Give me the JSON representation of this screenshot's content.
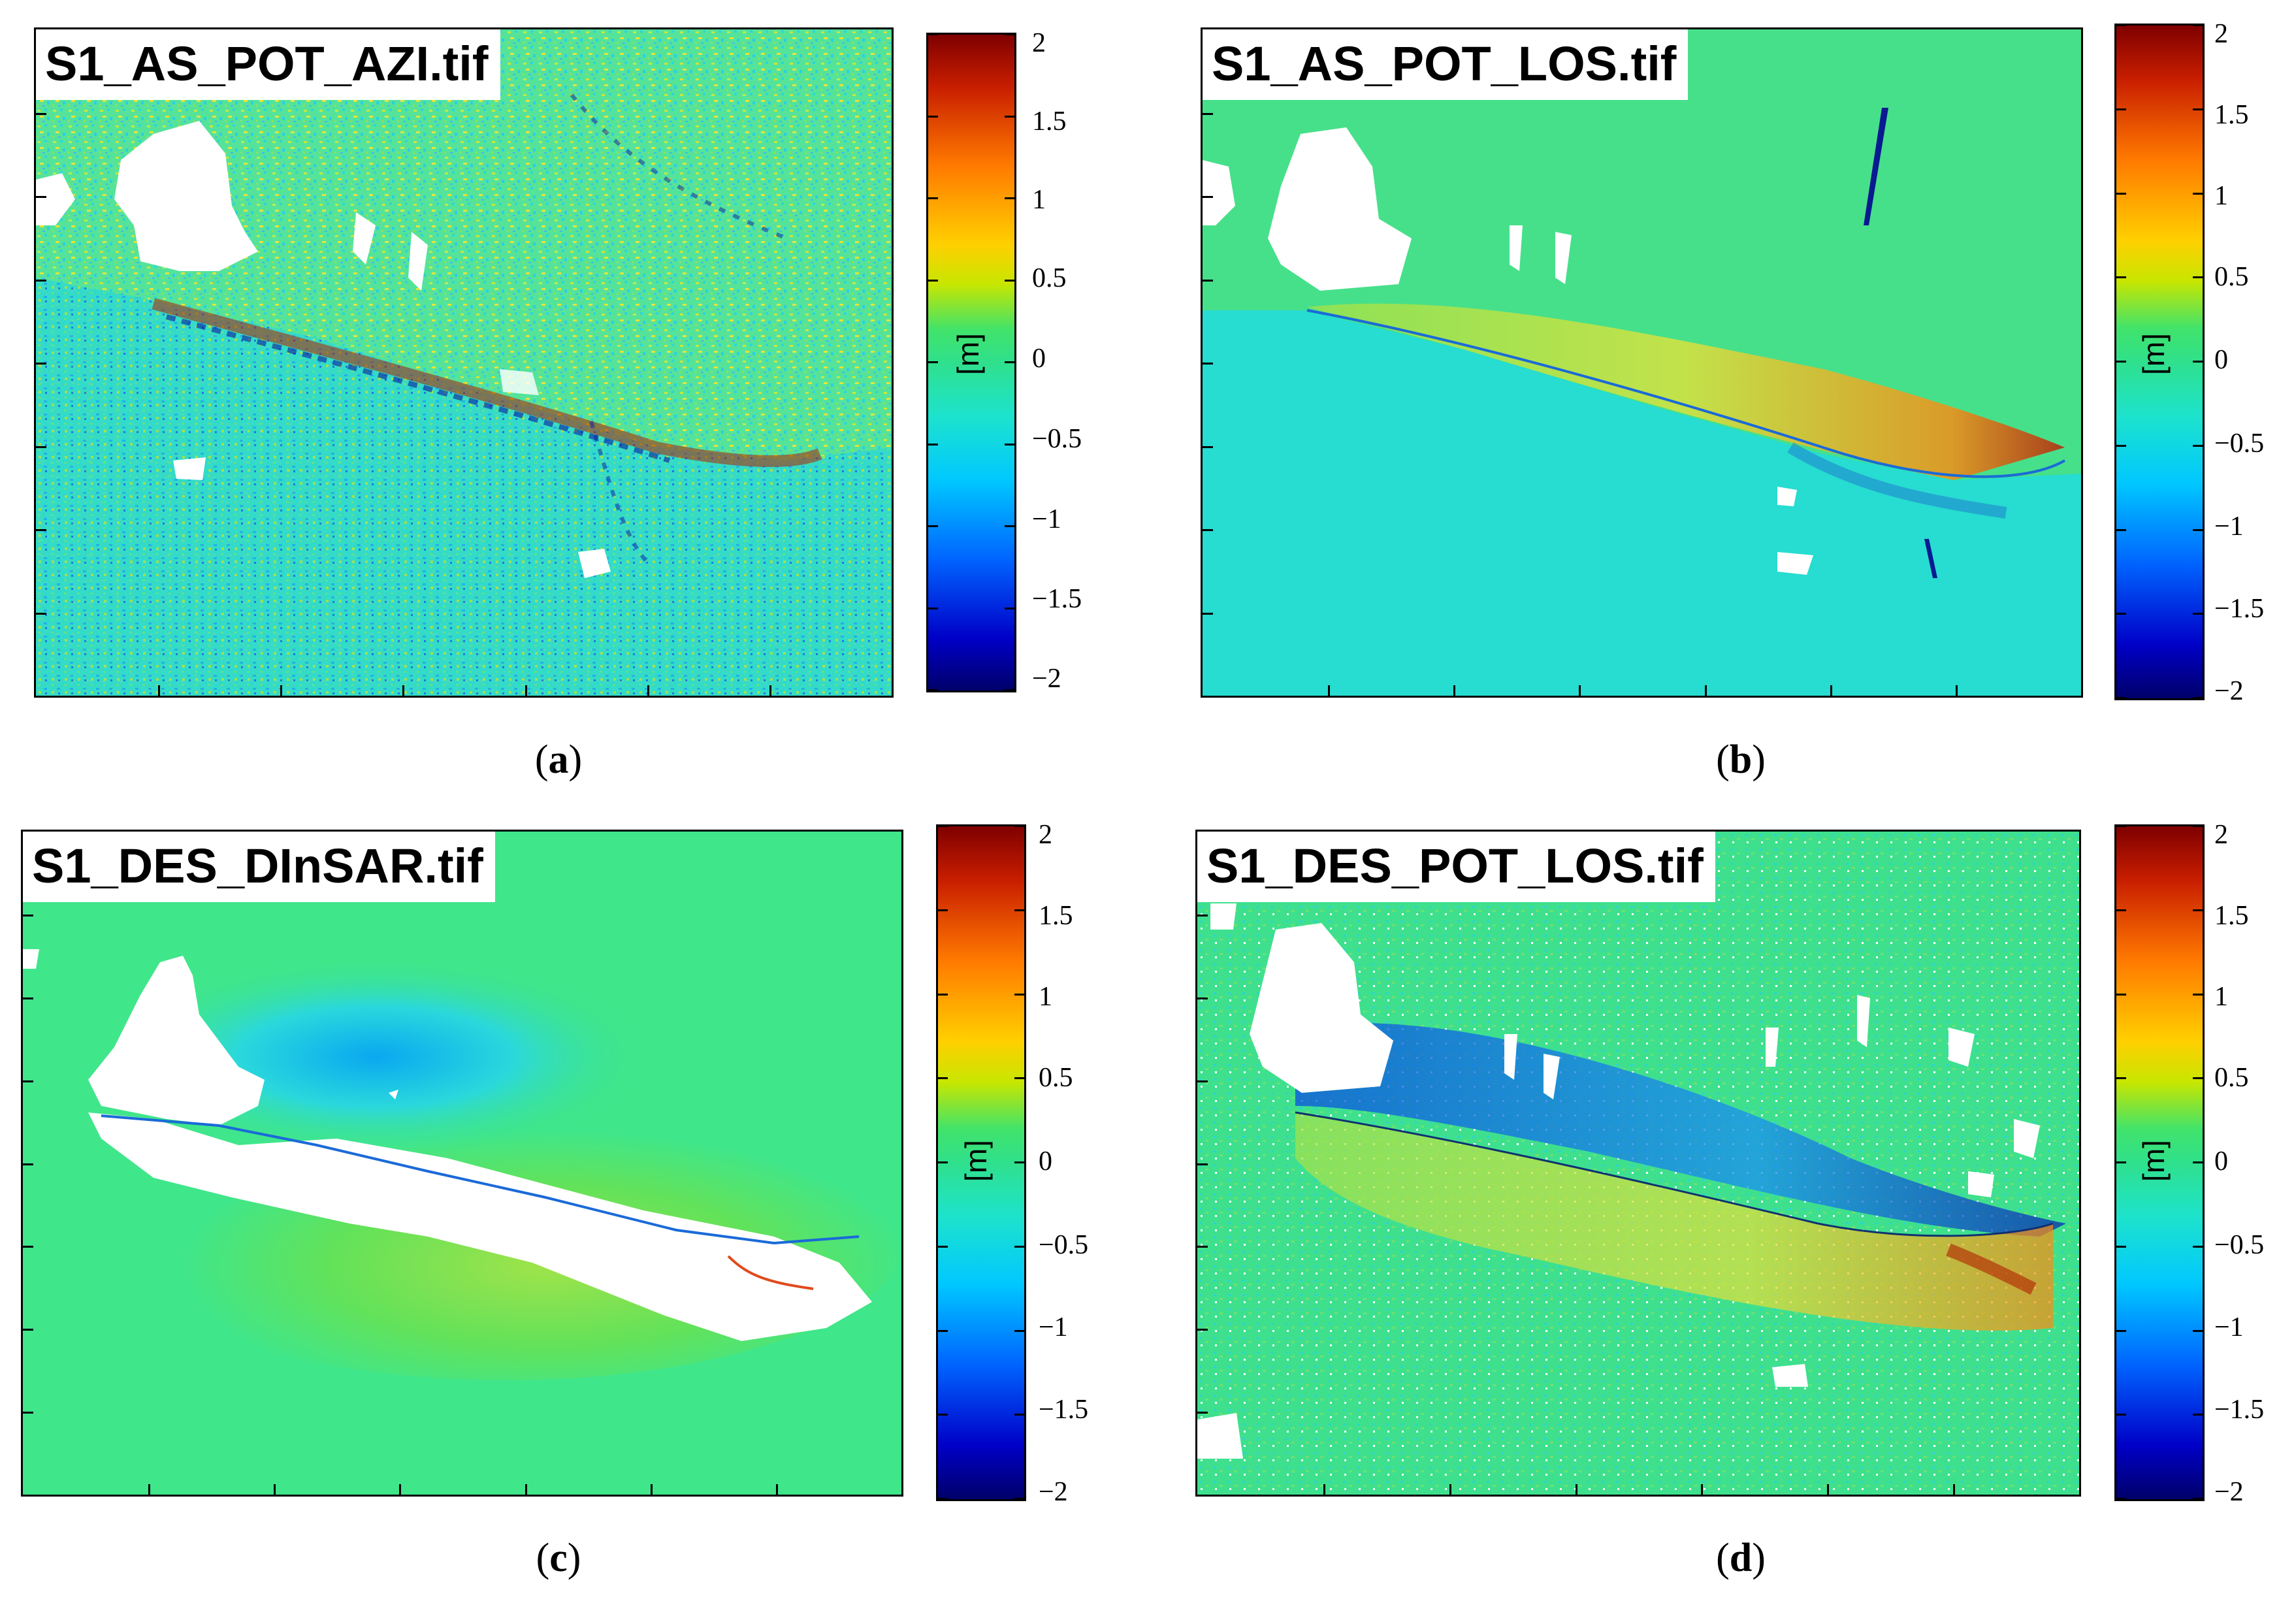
{
  "panels": [
    {
      "title": "S1_AS_POT_AZI.tif",
      "caption_letter": "a"
    },
    {
      "title": "S1_AS_POT_LOS.tif",
      "caption_letter": "b"
    },
    {
      "title": "S1_DES_DInSAR.tif",
      "caption_letter": "c"
    },
    {
      "title": "S1_DES_POT_LOS.tif",
      "caption_letter": "d"
    }
  ],
  "colorbar": {
    "unit": "[m]",
    "ticks": [
      "2",
      "1.5",
      "1",
      "0.5",
      "0",
      "−0.5",
      "−1",
      "−1.5",
      "−2"
    ],
    "range": [
      -2,
      2
    ],
    "colormap": "jet"
  },
  "colors": {
    "background_green": "#3de38a",
    "pale_green": "#5ee28a",
    "cyan": "#1fd9e6",
    "yellow": "#d8e83a",
    "blue_line": "#1f6fd0",
    "red_line": "#e04a1c"
  }
}
